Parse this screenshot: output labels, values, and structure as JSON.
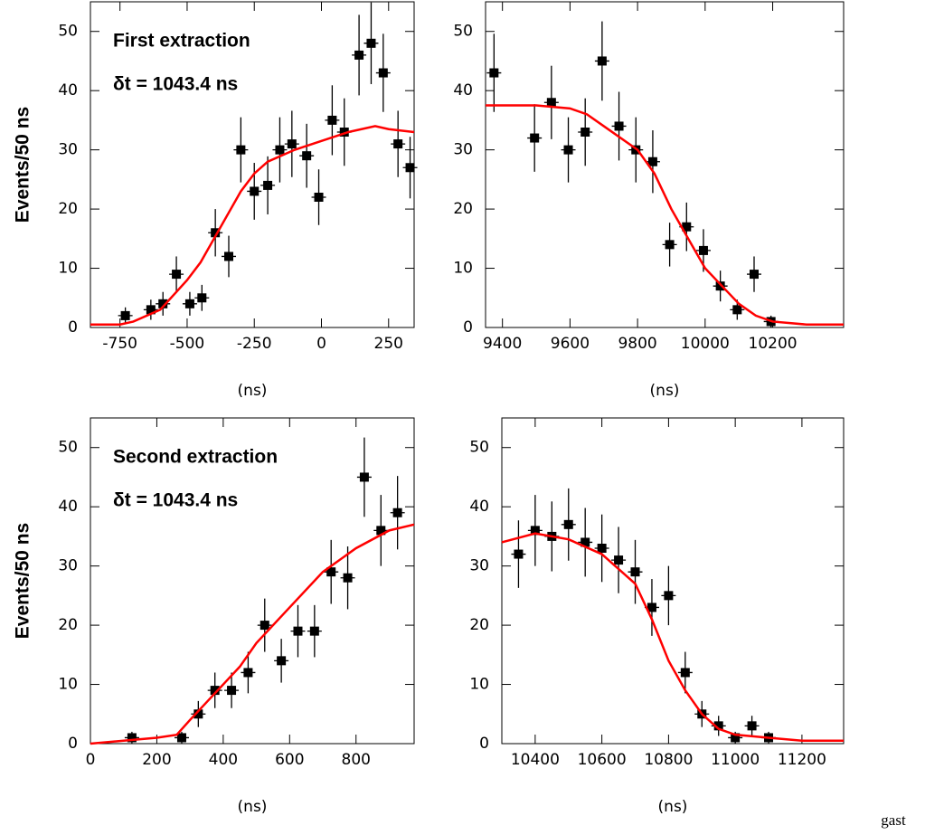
{
  "chart_data": [
    {
      "type": "scatter",
      "color": "#000000",
      "ylabel": "Events/50 ns",
      "xlabel": "(ns)",
      "annotations": [
        {
          "text": "First extraction",
          "color": "#000000"
        },
        {
          "text": "δt = 1043.4 ns",
          "color": "#ff0000"
        }
      ],
      "x": [
        -730,
        -635,
        -590,
        -540,
        -490,
        -445,
        -395,
        -345,
        -300,
        -250,
        -200,
        -155,
        -110,
        -55,
        -10,
        40,
        85,
        140,
        185,
        230,
        285,
        330
      ],
      "values": [
        2,
        3,
        4,
        9,
        4,
        5,
        16,
        12,
        30,
        23,
        24,
        30,
        31,
        29,
        22,
        35,
        33,
        46,
        48,
        43,
        31,
        27
      ],
      "errors": [
        1.4,
        1.7,
        2,
        3,
        2,
        2.2,
        4,
        3.5,
        5.5,
        4.8,
        4.9,
        5.5,
        5.6,
        5.4,
        4.7,
        5.9,
        5.7,
        6.8,
        6.9,
        6.6,
        5.6,
        5.2
      ],
      "fit": {
        "color": "#ff0000",
        "x": [
          -860,
          -750,
          -700,
          -600,
          -500,
          -450,
          -400,
          -300,
          -250,
          -200,
          -100,
          0,
          100,
          200,
          250,
          345
        ],
        "values": [
          0.5,
          0.5,
          1,
          3,
          8,
          11,
          15,
          23,
          26,
          28,
          30,
          31.5,
          33,
          34,
          33.5,
          33
        ]
      },
      "xlim": [
        -860,
        345
      ],
      "ylim": [
        0,
        55
      ],
      "xticks": [
        -750,
        -500,
        -250,
        0,
        250
      ],
      "yticks": [
        0,
        10,
        20,
        30,
        40,
        50
      ],
      "grid": false
    },
    {
      "type": "scatter",
      "color": "#000000",
      "xlabel": "(ns)",
      "x": [
        9375,
        9495,
        9545,
        9595,
        9645,
        9695,
        9745,
        9795,
        9845,
        9895,
        9945,
        9995,
        10045,
        10095,
        10145,
        10195
      ],
      "values": [
        43,
        32,
        38,
        30,
        33,
        45,
        34,
        30,
        28,
        14,
        17,
        13,
        7,
        3,
        9,
        1
      ],
      "errors": [
        6.6,
        5.7,
        6.2,
        5.5,
        5.7,
        6.7,
        5.8,
        5.5,
        5.3,
        3.7,
        4.1,
        3.6,
        2.6,
        1.7,
        3,
        1
      ],
      "fit": {
        "color": "#ff0000",
        "x": [
          9350,
          9500,
          9600,
          9650,
          9700,
          9800,
          9850,
          9900,
          9950,
          10000,
          10050,
          10100,
          10150,
          10200,
          10300,
          10410
        ],
        "values": [
          37.5,
          37.5,
          37,
          36,
          34,
          30,
          26,
          20,
          15,
          10,
          7,
          4,
          2,
          1,
          0.5,
          0.5
        ]
      },
      "xlim": [
        9350,
        10410
      ],
      "ylim": [
        0,
        55
      ],
      "xticks": [
        9400,
        9600,
        9800,
        10000,
        10200
      ],
      "yticks": [
        0,
        10,
        20,
        30,
        40,
        50
      ],
      "grid": false
    },
    {
      "type": "scatter",
      "color": "#000000",
      "ylabel": "Events/50 ns",
      "xlabel": "(ns)",
      "annotations": [
        {
          "text": "Second extraction",
          "color": "#000000"
        },
        {
          "text": "δt = 1043.4 ns",
          "color": "#ff0000"
        }
      ],
      "x": [
        125,
        275,
        325,
        375,
        425,
        475,
        525,
        575,
        625,
        675,
        725,
        775,
        825,
        875,
        925
      ],
      "values": [
        1,
        1,
        5,
        9,
        9,
        12,
        20,
        14,
        19,
        19,
        29,
        28,
        45,
        36,
        39
      ],
      "errors": [
        1,
        1,
        2.2,
        3,
        3,
        3.5,
        4.5,
        3.7,
        4.4,
        4.4,
        5.4,
        5.3,
        6.7,
        6,
        6.2
      ],
      "fit": {
        "color": "#ff0000",
        "x": [
          0,
          100,
          200,
          260,
          300,
          350,
          400,
          450,
          500,
          600,
          700,
          800,
          900,
          975
        ],
        "values": [
          0,
          0.5,
          1,
          1.5,
          4,
          7,
          10,
          13,
          17,
          23,
          29,
          33,
          36,
          37
        ]
      },
      "xlim": [
        0,
        975
      ],
      "ylim": [
        0,
        55
      ],
      "xticks": [
        0,
        200,
        400,
        600,
        800
      ],
      "yticks": [
        0,
        10,
        20,
        30,
        40,
        50
      ],
      "grid": false
    },
    {
      "type": "scatter",
      "color": "#000000",
      "xlabel": "(ns)",
      "x": [
        10350,
        10400,
        10450,
        10500,
        10550,
        10600,
        10650,
        10700,
        10750,
        10800,
        10850,
        10900,
        10950,
        11000,
        11050,
        11100
      ],
      "values": [
        32,
        36,
        35,
        37,
        34,
        33,
        31,
        29,
        23,
        25,
        12,
        5,
        3,
        1,
        3,
        1
      ],
      "errors": [
        5.7,
        6,
        5.9,
        6.1,
        5.8,
        5.7,
        5.6,
        5.4,
        4.8,
        5,
        3.5,
        2.2,
        1.7,
        1,
        1.7,
        1
      ],
      "fit": {
        "color": "#ff0000",
        "x": [
          10300,
          10400,
          10500,
          10600,
          10700,
          10750,
          10800,
          10850,
          10900,
          10950,
          11000,
          11100,
          11200,
          11325
        ],
        "values": [
          34,
          35.5,
          34.5,
          32,
          27,
          21,
          14,
          9,
          5,
          2.5,
          1.5,
          1,
          0.5,
          0.5
        ]
      },
      "xlim": [
        10300,
        11325
      ],
      "ylim": [
        0,
        55
      ],
      "xticks": [
        10400,
        10600,
        10800,
        11000,
        11200
      ],
      "yticks": [
        0,
        10,
        20,
        30,
        40,
        50
      ],
      "grid": false
    }
  ],
  "footer": "gast"
}
